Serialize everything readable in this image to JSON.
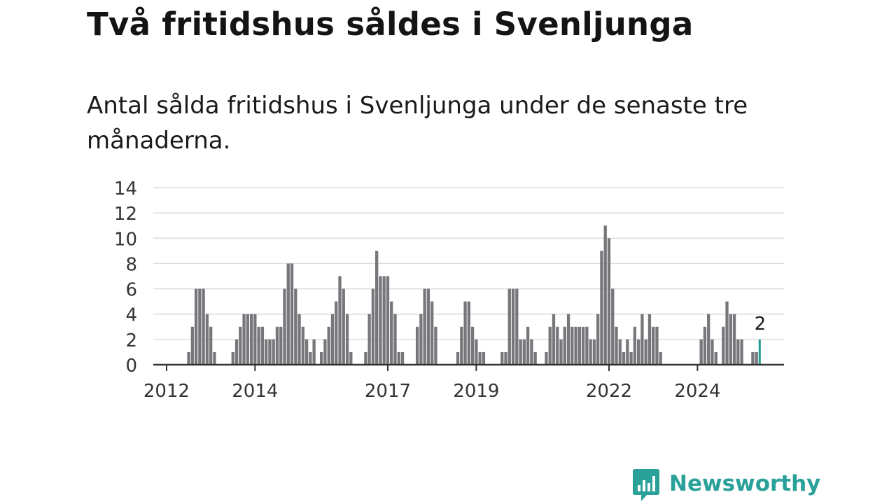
{
  "title": "Två fritidshus såldes i Svenljunga",
  "subtitle": "Antal sålda fritidshus i Svenljunga under de senaste tre månaderna.",
  "brand": {
    "name": "Newsworthy",
    "icon": "newsworthy-logo-icon"
  },
  "colors": {
    "bar": "#77767b",
    "highlight": "#1f9a8f",
    "grid": "#dcdcdc",
    "axis": "#333333",
    "brand": "#2aa198"
  },
  "chart_data": {
    "type": "bar",
    "frequency": "monthly",
    "start": "2011-10",
    "title": "Två fritidshus såldes i Svenljunga",
    "subtitle": "Antal sålda fritidshus i Svenljunga under de senaste tre månaderna.",
    "xlabel": "",
    "ylabel": "",
    "ylim": [
      0,
      14
    ],
    "y_ticks": [
      0,
      2,
      4,
      6,
      8,
      10,
      12,
      14
    ],
    "x_ticks": [
      {
        "label": "2012",
        "month": "2012-01"
      },
      {
        "label": "2014",
        "month": "2014-01"
      },
      {
        "label": "2017",
        "month": "2017-01"
      },
      {
        "label": "2019",
        "month": "2019-01"
      },
      {
        "label": "2022",
        "month": "2022-01"
      },
      {
        "label": "2024",
        "month": "2024-01"
      }
    ],
    "grid": true,
    "legend": "none",
    "values": [
      0,
      0,
      0,
      0,
      0,
      0,
      0,
      0,
      0,
      1,
      3,
      6,
      6,
      6,
      4,
      3,
      1,
      0,
      0,
      0,
      0,
      1,
      2,
      3,
      4,
      4,
      4,
      4,
      3,
      3,
      2,
      2,
      2,
      3,
      3,
      6,
      8,
      8,
      6,
      4,
      3,
      2,
      1,
      2,
      0,
      1,
      2,
      3,
      4,
      5,
      7,
      6,
      4,
      1,
      0,
      0,
      0,
      1,
      4,
      6,
      9,
      7,
      7,
      7,
      5,
      4,
      1,
      1,
      0,
      0,
      0,
      3,
      4,
      6,
      6,
      5,
      3,
      0,
      0,
      0,
      0,
      0,
      1,
      3,
      5,
      5,
      3,
      2,
      1,
      1,
      0,
      0,
      0,
      0,
      1,
      1,
      6,
      6,
      6,
      2,
      2,
      3,
      2,
      1,
      0,
      0,
      1,
      3,
      4,
      3,
      2,
      3,
      4,
      3,
      3,
      3,
      3,
      3,
      2,
      2,
      4,
      9,
      11,
      10,
      6,
      3,
      2,
      1,
      2,
      1,
      3,
      2,
      4,
      2,
      4,
      3,
      3,
      1,
      0,
      0,
      0,
      0,
      0,
      0,
      0,
      0,
      0,
      0,
      2,
      3,
      4,
      2,
      1,
      0,
      3,
      5,
      4,
      4,
      2,
      2,
      0,
      0,
      1,
      1,
      2
    ],
    "highlight_last": true,
    "annotation": {
      "text": "2",
      "value": 2
    }
  }
}
